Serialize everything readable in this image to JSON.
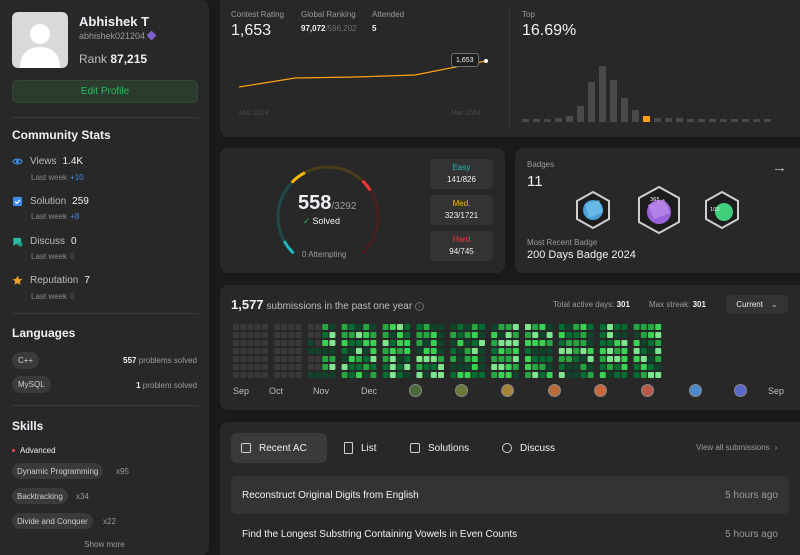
{
  "profile": {
    "name": "Abhishek T",
    "username": "abhishek021204",
    "rank_label": "Rank",
    "rank_value": "87,215",
    "edit_label": "Edit Profile"
  },
  "community": {
    "title": "Community Stats",
    "stats": [
      {
        "label": "Views",
        "value": "1.4K",
        "sub": "Last week",
        "delta": "+10",
        "icon": "eye-icon",
        "color": "#3e8de6"
      },
      {
        "label": "Solution",
        "value": "259",
        "sub": "Last week",
        "delta": "+8",
        "icon": "check-square-icon",
        "color": "#3e8de6"
      },
      {
        "label": "Discuss",
        "value": "0",
        "sub": "Last week",
        "delta": "0",
        "icon": "chat-icon",
        "color": "#2cbba1"
      },
      {
        "label": "Reputation",
        "value": "7",
        "sub": "Last week",
        "delta": "0",
        "icon": "star-icon",
        "color": "#f0a12f"
      }
    ]
  },
  "languages": {
    "title": "Languages",
    "items": [
      {
        "name": "C++",
        "count": "557",
        "suffix": "problems solved"
      },
      {
        "name": "MySQL",
        "count": "1",
        "suffix": "problem solved"
      }
    ]
  },
  "skills": {
    "title": "Skills",
    "level": "Advanced",
    "items": [
      {
        "name": "Dynamic Programming",
        "count": "x95"
      },
      {
        "name": "Backtracking",
        "count": "x34"
      },
      {
        "name": "Divide and Conquer",
        "count": "x22"
      }
    ],
    "show_more": "Show more"
  },
  "rating": {
    "contest_label": "Contest Rating",
    "contest_value": "1,653",
    "global_label": "Global Ranking",
    "global_value": "97,072",
    "global_total": "/596,202",
    "attended_label": "Attended",
    "attended_value": "5",
    "tooltip": "1,653",
    "axis_start": "Mar 2024",
    "axis_end": "Mar 2024",
    "top_label": "Top",
    "top_value": "16.69%",
    "line_color": "#ffa116",
    "histogram": [
      1,
      1,
      1,
      2,
      3,
      8,
      20,
      28,
      21,
      12,
      6,
      3,
      2,
      2,
      2,
      1,
      1,
      1,
      1,
      1,
      1,
      1,
      1
    ],
    "histogram_highlight": 11
  },
  "solved": {
    "count": "558",
    "total": "/3292",
    "solved_label": "Solved",
    "attempting": "0 Attempting",
    "ring": {
      "easy": 141,
      "medium": 323,
      "hard": 94,
      "total": 558
    },
    "difficulties": [
      {
        "name": "Easy",
        "value": "141/826",
        "color": "#1cbaba"
      },
      {
        "name": "Med.",
        "value": "323/1721",
        "color": "#ffb700"
      },
      {
        "name": "Hard",
        "value": "94/745",
        "color": "#f63737"
      }
    ]
  },
  "badges": {
    "label": "Badges",
    "count": "11",
    "recent_label": "Most Recent Badge",
    "recent_name": "200 Days Badge 2024"
  },
  "submissions": {
    "count": "1,577",
    "title_suffix": "submissions in the past one year",
    "active_label": "Total active days:",
    "active_value": "301",
    "streak_label": "Max streak:",
    "streak_value": "301",
    "year_button": "Current",
    "months": [
      "Sep",
      "Oct",
      "Nov",
      "Dec",
      "",
      "",
      "",
      "",
      "",
      "",
      "",
      "",
      "Sep"
    ]
  },
  "recent": {
    "tabs": [
      {
        "label": "Recent AC",
        "icon": "list-check-icon"
      },
      {
        "label": "List",
        "icon": "document-icon"
      },
      {
        "label": "Solutions",
        "icon": "checkbox-icon"
      },
      {
        "label": "Discuss",
        "icon": "chat-search-icon"
      }
    ],
    "view_all": "View all submissions",
    "items": [
      {
        "title": "Reconstruct Original Digits from English",
        "time": "5 hours ago"
      },
      {
        "title": "Find the Longest Substring Containing Vowels in Even Counts",
        "time": "5 hours ago"
      }
    ]
  }
}
